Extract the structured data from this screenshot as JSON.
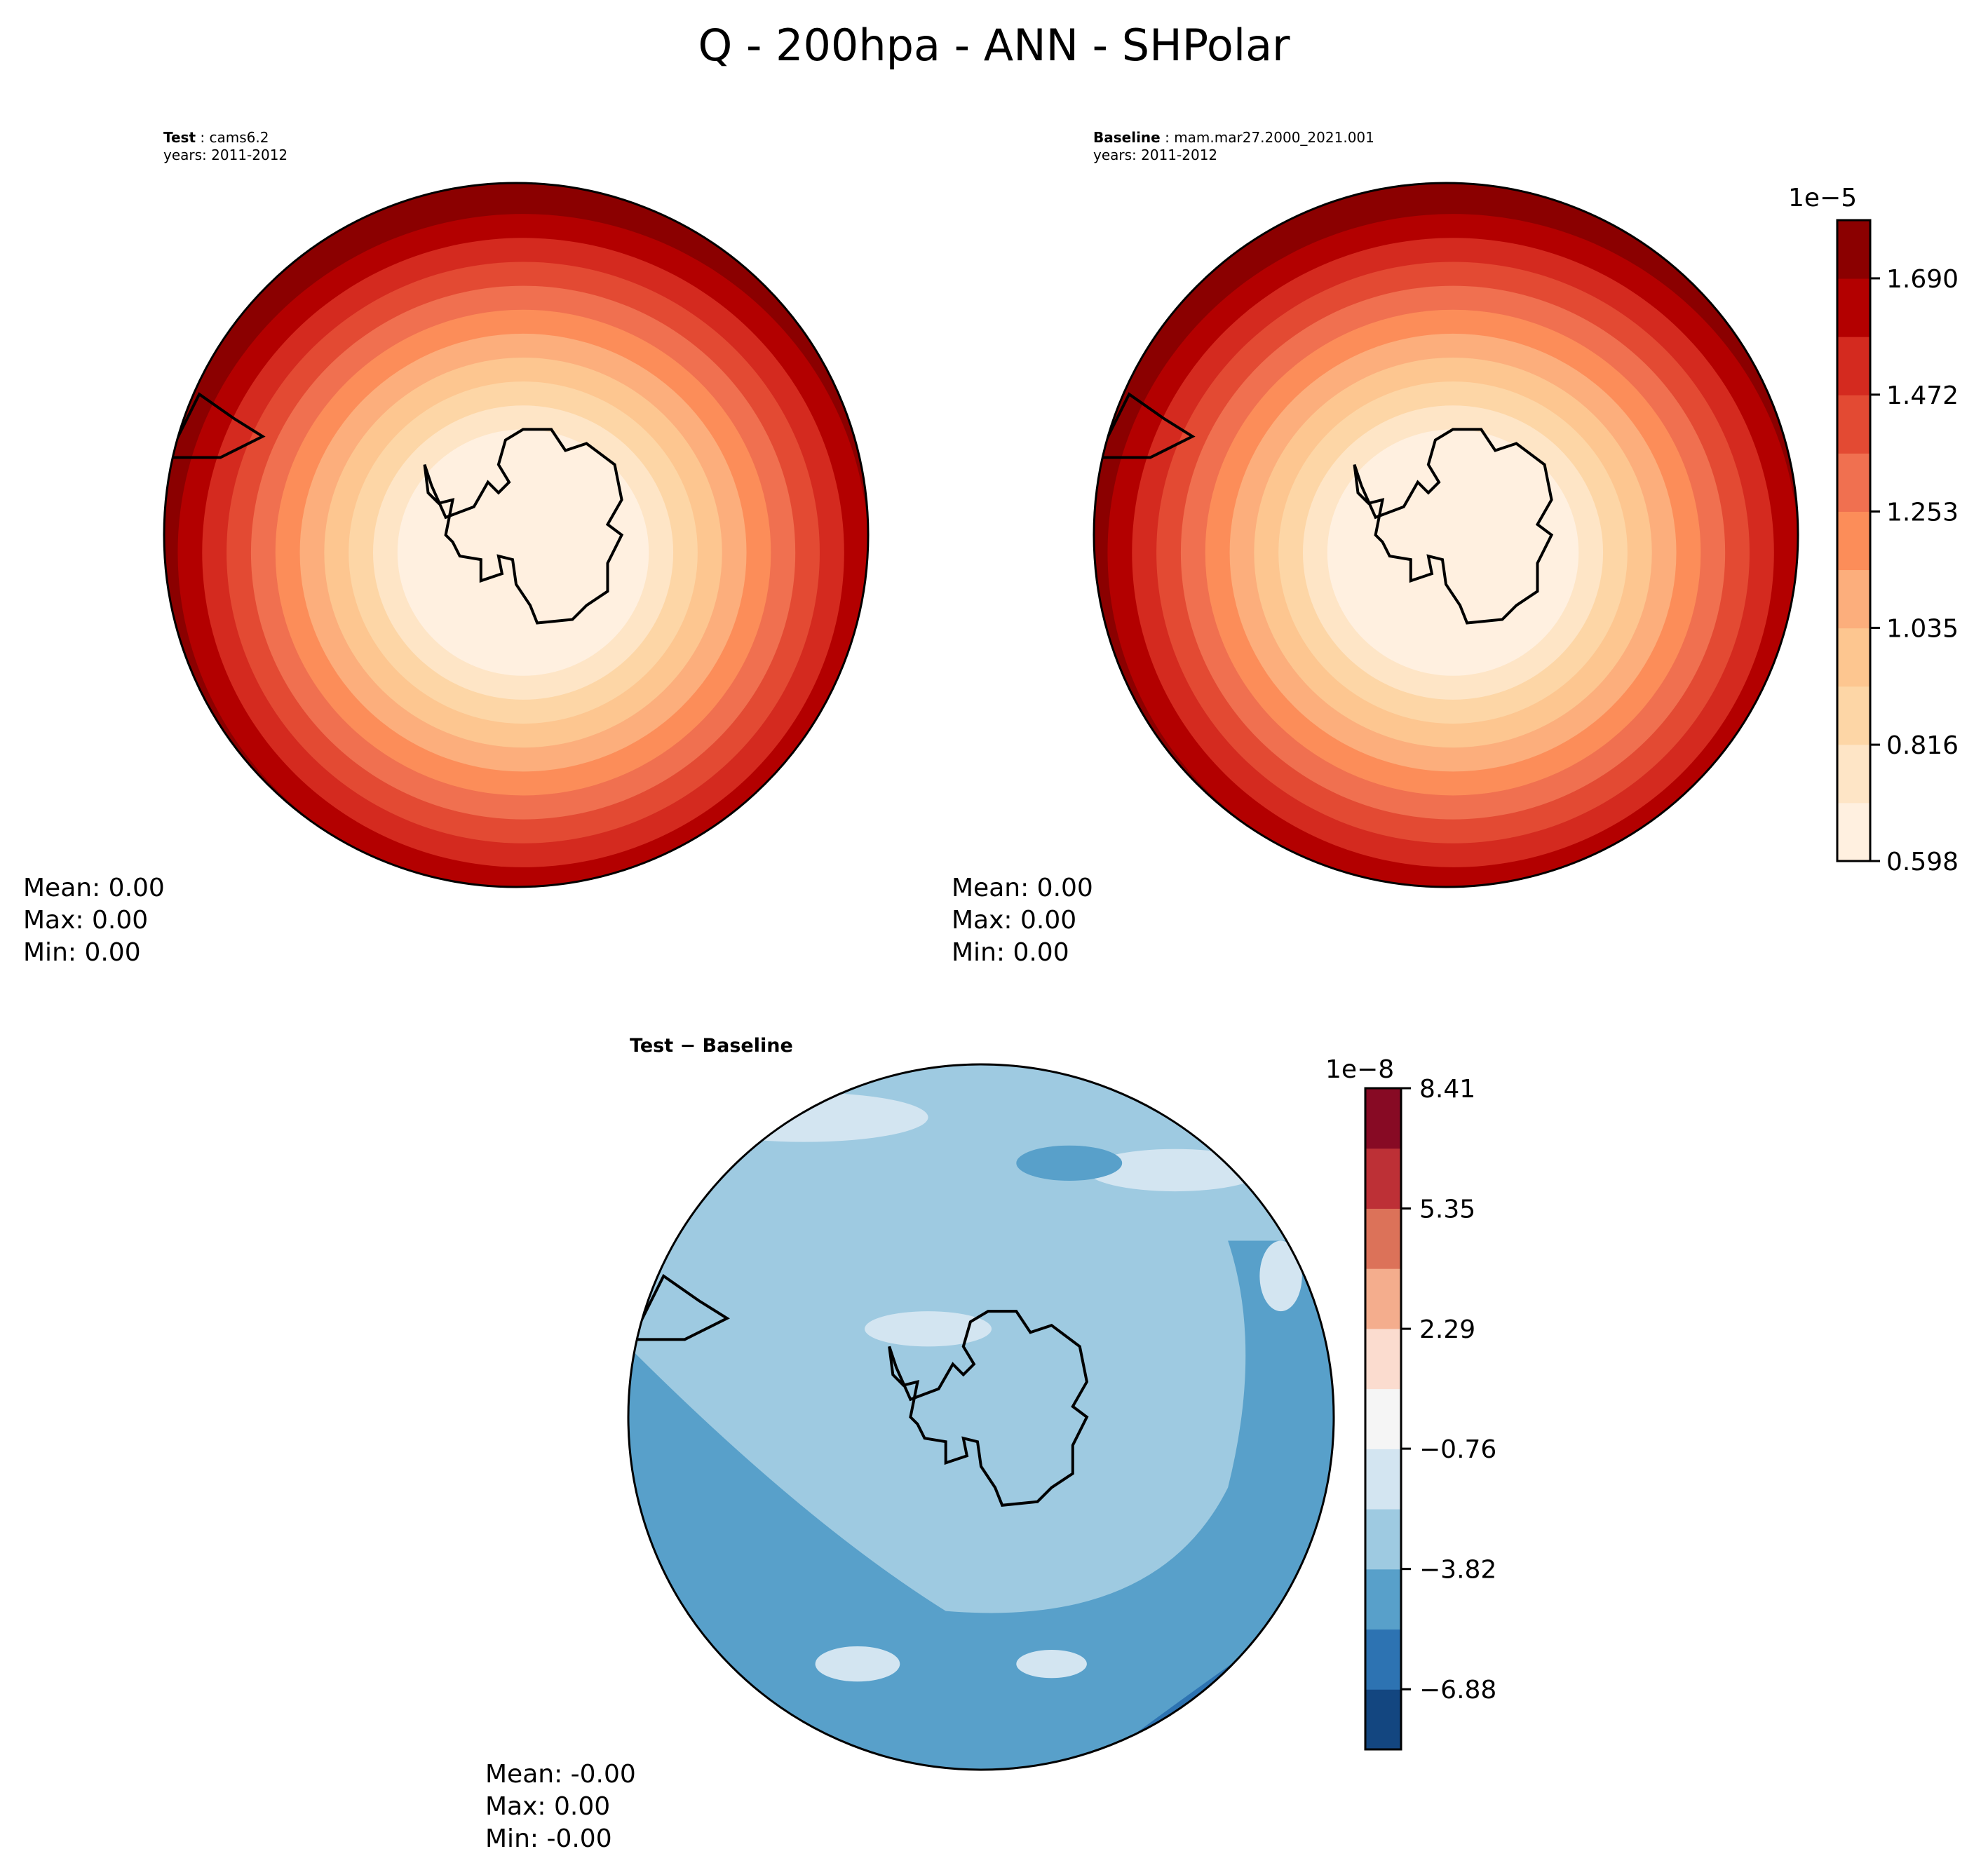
{
  "title": "Q - 200hpa - ANN - SHPolar",
  "panels": {
    "test": {
      "label_bold": "Test",
      "label_rest": " : cams6.2",
      "years": "years: 2011-2012",
      "stats": {
        "mean": "Mean:  0.00",
        "max": "Max:  0.00",
        "min": "Min:  0.00"
      }
    },
    "baseline": {
      "label_bold": "Baseline",
      "label_rest": " : mam.mar27.2000_2021.001",
      "years": "years: 2011-2012",
      "stats": {
        "mean": "Mean:  0.00",
        "max": "Max:  0.00",
        "min": "Min:  0.00"
      }
    },
    "diff": {
      "label": "Test − Baseline",
      "stats": {
        "mean": "Mean: -0.00",
        "max": "Max:  0.00",
        "min": "Min: -0.00"
      }
    }
  },
  "chart_data": [
    {
      "type": "heatmap",
      "name": "test",
      "projection": "south-polar-stereographic",
      "region": "SHPolar",
      "field_range": [
        5.98e-06,
        1.8e-05
      ]
    },
    {
      "type": "heatmap",
      "name": "baseline",
      "projection": "south-polar-stereographic",
      "region": "SHPolar",
      "field_range": [
        5.98e-06,
        1.8e-05
      ]
    },
    {
      "type": "heatmap",
      "name": "diff",
      "projection": "south-polar-stereographic",
      "region": "SHPolar",
      "field_range": [
        -8.41e-08,
        8.41e-08
      ]
    }
  ],
  "colorbars": {
    "top": {
      "offset": "1e−5",
      "ticks": [
        "0.598",
        "0.816",
        "1.035",
        "1.253",
        "1.472",
        "1.690"
      ],
      "tick_values": [
        0.598,
        0.816,
        1.035,
        1.253,
        1.472,
        1.69
      ],
      "range": [
        0.598,
        1.799
      ],
      "colors": [
        "#fff0e0",
        "#fee5c6",
        "#fdd6a6",
        "#fdc690",
        "#fcae7c",
        "#fc8d59",
        "#f07050",
        "#e34a33",
        "#d42a1f",
        "#b30000",
        "#8b0000"
      ]
    },
    "bottom": {
      "offset": "1e−8",
      "ticks": [
        "8.41",
        "5.35",
        "2.29",
        "−0.76",
        "−3.82",
        "−6.88"
      ],
      "tick_values": [
        8.41,
        5.35,
        2.29,
        -0.76,
        -3.82,
        -6.88
      ],
      "range": [
        -8.41,
        8.41
      ],
      "colors": [
        "#134680",
        "#2d73b2",
        "#58a0ca",
        "#9ecae1",
        "#d3e5f1",
        "#f5f5f5",
        "#fbdccf",
        "#f4ad8d",
        "#dc7259",
        "#bd3036",
        "#870a24"
      ]
    }
  }
}
